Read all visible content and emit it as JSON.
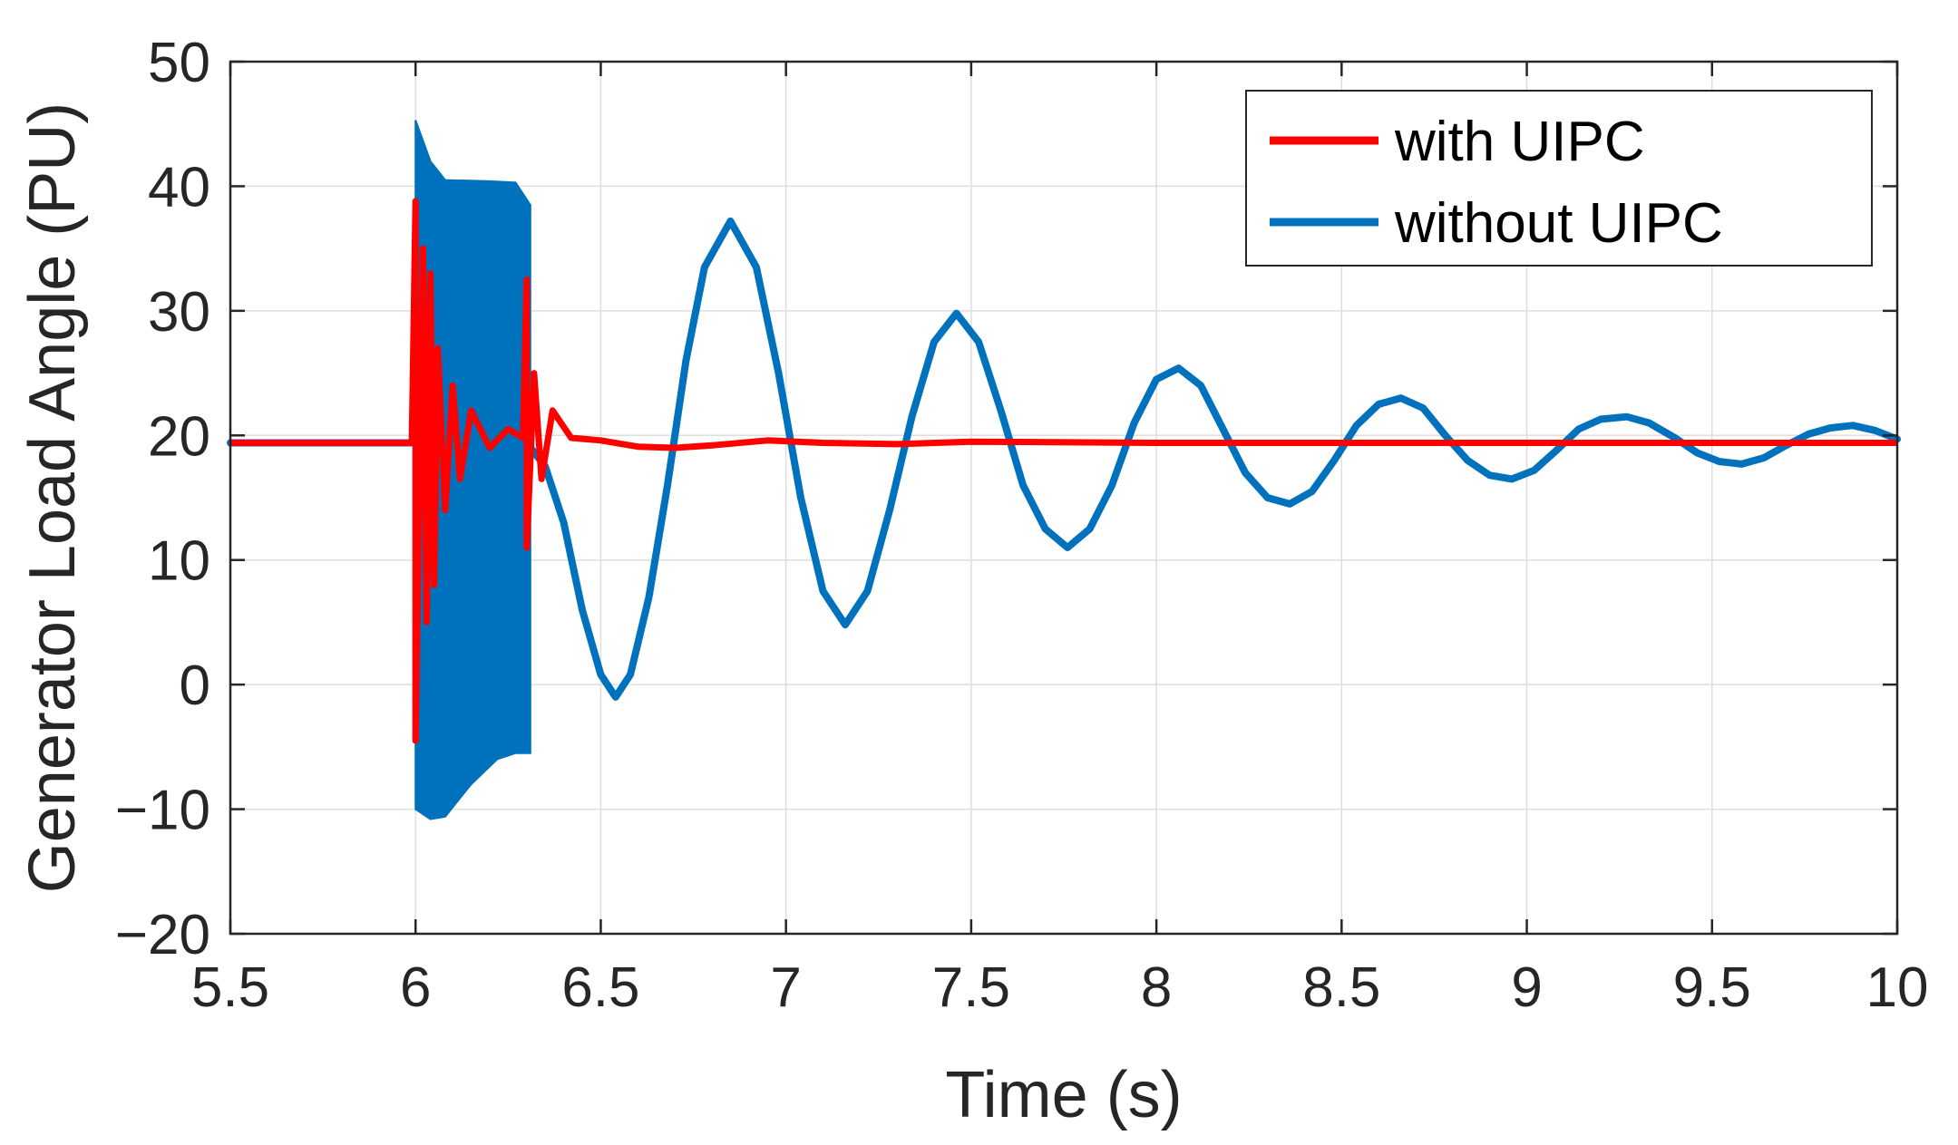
{
  "chart_data": {
    "type": "line",
    "title": "",
    "xlabel": "Time (s)",
    "ylabel": "Generator Load Angle (PU)",
    "xlim": [
      5.5,
      10
    ],
    "ylim": [
      -20,
      50
    ],
    "grid": true,
    "legend_position": "top-right",
    "x_ticks": [
      "5.5",
      "6",
      "6.5",
      "7",
      "7.5",
      "8",
      "8.5",
      "9",
      "9.5",
      "10"
    ],
    "y_ticks": [
      "−20",
      "−10",
      "0",
      "10",
      "20",
      "30",
      "40",
      "50"
    ],
    "series": [
      {
        "name": "with UIPC",
        "color": "#ff0000",
        "points": [
          [
            5.5,
            19.4
          ],
          [
            5.99,
            19.4
          ],
          [
            6.0,
            38.8
          ],
          [
            6.0,
            -4.5
          ],
          [
            6.02,
            35.0
          ],
          [
            6.03,
            5.0
          ],
          [
            6.04,
            33.0
          ],
          [
            6.05,
            8.0
          ],
          [
            6.06,
            27.0
          ],
          [
            6.08,
            14.0
          ],
          [
            6.1,
            24.0
          ],
          [
            6.12,
            16.5
          ],
          [
            6.15,
            22.0
          ],
          [
            6.2,
            19.0
          ],
          [
            6.25,
            20.5
          ],
          [
            6.29,
            19.8
          ],
          [
            6.3,
            32.5
          ],
          [
            6.3,
            11.0
          ],
          [
            6.32,
            25.0
          ],
          [
            6.34,
            16.5
          ],
          [
            6.37,
            22.0
          ],
          [
            6.42,
            19.8
          ],
          [
            6.5,
            19.6
          ],
          [
            6.6,
            19.1
          ],
          [
            6.7,
            19.0
          ],
          [
            6.8,
            19.2
          ],
          [
            6.95,
            19.6
          ],
          [
            7.1,
            19.4
          ],
          [
            7.3,
            19.3
          ],
          [
            7.5,
            19.5
          ],
          [
            8.0,
            19.4
          ],
          [
            9.0,
            19.4
          ],
          [
            10.0,
            19.4
          ]
        ]
      },
      {
        "name": "without UIPC",
        "color": "#0072bd",
        "points": [
          [
            5.5,
            19.4
          ],
          [
            6.0,
            19.4
          ],
          [
            6.3,
            19.4
          ],
          [
            6.35,
            17.5
          ],
          [
            6.4,
            13.0
          ],
          [
            6.45,
            6.0
          ],
          [
            6.5,
            0.8
          ],
          [
            6.54,
            -1.0
          ],
          [
            6.58,
            0.8
          ],
          [
            6.63,
            7.0
          ],
          [
            6.68,
            16.0
          ],
          [
            6.73,
            26.0
          ],
          [
            6.78,
            33.5
          ],
          [
            6.85,
            37.2
          ],
          [
            6.92,
            33.5
          ],
          [
            6.98,
            25.0
          ],
          [
            7.04,
            15.0
          ],
          [
            7.1,
            7.5
          ],
          [
            7.16,
            4.8
          ],
          [
            7.22,
            7.5
          ],
          [
            7.28,
            14.0
          ],
          [
            7.34,
            21.5
          ],
          [
            7.4,
            27.5
          ],
          [
            7.46,
            29.8
          ],
          [
            7.52,
            27.5
          ],
          [
            7.58,
            22.0
          ],
          [
            7.64,
            16.0
          ],
          [
            7.7,
            12.5
          ],
          [
            7.76,
            11.0
          ],
          [
            7.82,
            12.5
          ],
          [
            7.88,
            16.0
          ],
          [
            7.94,
            21.0
          ],
          [
            8.0,
            24.5
          ],
          [
            8.06,
            25.4
          ],
          [
            8.12,
            24.0
          ],
          [
            8.18,
            20.5
          ],
          [
            8.24,
            17.0
          ],
          [
            8.3,
            15.0
          ],
          [
            8.36,
            14.5
          ],
          [
            8.42,
            15.5
          ],
          [
            8.48,
            18.0
          ],
          [
            8.54,
            20.8
          ],
          [
            8.6,
            22.5
          ],
          [
            8.66,
            23.0
          ],
          [
            8.72,
            22.2
          ],
          [
            8.78,
            20.0
          ],
          [
            8.84,
            18.0
          ],
          [
            8.9,
            16.8
          ],
          [
            8.96,
            16.5
          ],
          [
            9.02,
            17.2
          ],
          [
            9.08,
            18.8
          ],
          [
            9.14,
            20.5
          ],
          [
            9.2,
            21.3
          ],
          [
            9.27,
            21.5
          ],
          [
            9.33,
            21.0
          ],
          [
            9.4,
            19.8
          ],
          [
            9.46,
            18.6
          ],
          [
            9.52,
            17.9
          ],
          [
            9.58,
            17.7
          ],
          [
            9.64,
            18.2
          ],
          [
            9.7,
            19.2
          ],
          [
            9.76,
            20.1
          ],
          [
            9.82,
            20.6
          ],
          [
            9.88,
            20.8
          ],
          [
            9.94,
            20.4
          ],
          [
            10.0,
            19.7
          ]
        ],
        "oscillation_band": {
          "x_start": 6.0,
          "x_end": 6.31,
          "upper": [
            [
              6.0,
              45.3
            ],
            [
              6.04,
              42.0
            ],
            [
              6.08,
              40.5
            ],
            [
              6.2,
              40.4
            ],
            [
              6.27,
              40.3
            ],
            [
              6.31,
              38.5
            ]
          ],
          "lower": [
            [
              6.0,
              -10.0
            ],
            [
              6.04,
              -10.8
            ],
            [
              6.08,
              -10.6
            ],
            [
              6.15,
              -8.0
            ],
            [
              6.22,
              -6.0
            ],
            [
              6.27,
              -5.5
            ],
            [
              6.31,
              -5.5
            ]
          ]
        }
      }
    ]
  }
}
